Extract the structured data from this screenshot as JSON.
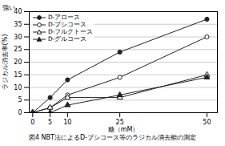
{
  "chart_data": {
    "type": "line",
    "title": "図4 NBT法によるD-プシコース等のラジカル消去能の測定",
    "xlabel": "糖（mM）",
    "ylabel": "ラジカル消去率(%)",
    "annotations": [
      "強い"
    ],
    "x": [
      0,
      5,
      10,
      25,
      50
    ],
    "series": [
      {
        "name": "D-アロース",
        "color": "#222222",
        "marker": "circle",
        "values": [
          0,
          6,
          13,
          24,
          37
        ]
      },
      {
        "name": "D-プシコース",
        "color": "#222222",
        "marker": "circle-open",
        "values": [
          0,
          2,
          7,
          14,
          30
        ]
      },
      {
        "name": "D-フルクトース",
        "color": "#222222",
        "marker": "triangle-open",
        "values": [
          0,
          2,
          6,
          6,
          15
        ]
      },
      {
        "name": "D-グルコース",
        "color": "#222222",
        "marker": "triangle",
        "values": [
          0,
          0,
          3,
          7,
          14
        ]
      }
    ],
    "xlim": [
      -1,
      53
    ],
    "xticks": [
      0,
      5,
      10,
      25,
      50
    ],
    "ylim": [
      0,
      40
    ],
    "yticks": [
      0,
      5,
      10,
      15,
      20,
      25,
      30,
      35,
      40
    ],
    "grid": "y",
    "legend": "upper left"
  }
}
